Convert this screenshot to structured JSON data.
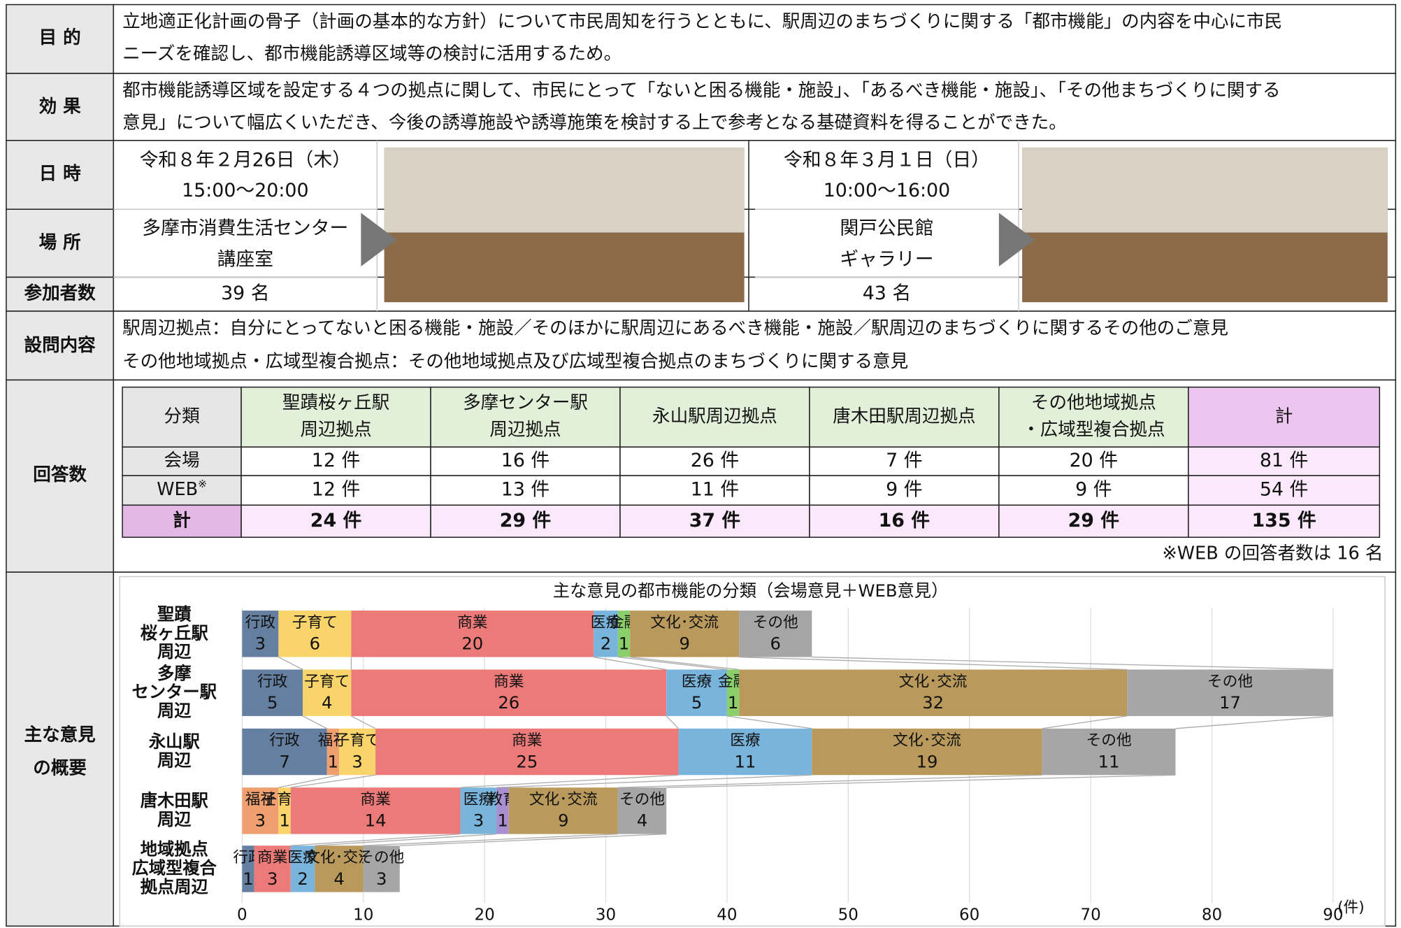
{
  "rows": [
    {
      "label": "目 的",
      "lines": [
        "立地適正化計画の骨子（計画の基本的な方針）について市民周知を行うとともに、駅周辺のまちづくりに関する「都市機能」の内容を中心に市民",
        "ニーズを確認し、都市機能誘導区域等の検討に活用するため。"
      ]
    },
    {
      "label": "効 果",
      "lines": [
        "都市機能誘導区域を設定する４つの拠点に関して、市民にとって「ないと困る機能・施設」、「あるべき機能・施設」、「その他まちづくりに関する",
        "意見」について幅広くいただき、今後の誘導施設や誘導施策を検討する上で参考となる基礎資料を得ることができた。"
      ]
    }
  ],
  "sessions": {
    "labels": {
      "datetime": "日 時",
      "place": "場 所",
      "participants": "参加者数"
    },
    "items": [
      {
        "date": "令和８年２月26日（木）",
        "time": "15:00～20:00",
        "place": [
          "多摩市消費生活センター",
          "講座室"
        ],
        "participants": "39 名"
      },
      {
        "date": "令和８年３月１日（日）",
        "time": "10:00～16:00",
        "place": [
          "関戸公民館",
          "ギャラリー"
        ],
        "participants": "43 名"
      }
    ]
  },
  "questions": {
    "label": "設問内容",
    "lines": [
      "駅周辺拠点：自分にとってないと困る機能・施設／そのほかに駅周辺にあるべき機能・施設／駅周辺のまちづくりに関するその他のご意見",
      "その他地域拠点・広域型複合拠点：その他地域拠点及び広域型複合拠点のまちづくりに関する意見"
    ]
  },
  "answers": {
    "label": "回答数",
    "header": [
      [
        "分類"
      ],
      [
        "聖蹟桜ヶ丘駅",
        "周辺拠点"
      ],
      [
        "多摩センター駅",
        "周辺拠点"
      ],
      [
        "永山駅周辺拠点"
      ],
      [
        "唐木田駅周辺拠点"
      ],
      [
        "その他地域拠点",
        "・広域型複合拠点"
      ],
      [
        "計"
      ]
    ],
    "rows": [
      {
        "label": "会場",
        "cells": [
          "12 件",
          "16 件",
          "26 件",
          "7 件",
          "20 件",
          "81 件"
        ]
      },
      {
        "label": "WEB",
        "note_mark": "※",
        "cells": [
          "12 件",
          "13 件",
          "11 件",
          "9 件",
          "9 件",
          "54 件"
        ]
      },
      {
        "label": "計",
        "cells": [
          "24 件",
          "29 件",
          "37 件",
          "16 件",
          "29 件",
          "135 件"
        ]
      }
    ],
    "note": "※WEB の回答者数は 16 名"
  },
  "opinions": {
    "label": [
      "主な意見",
      "の概要"
    ],
    "chart_data": {
      "type": "bar",
      "orientation": "horizontal",
      "stacked": true,
      "title": "主な意見の都市機能の分類（会場意見＋WEB意見）",
      "categories": [
        [
          "聖蹟",
          "桜ヶ丘駅",
          "周辺"
        ],
        [
          "多摩",
          "センター駅",
          "周辺"
        ],
        [
          "永山駅",
          "周辺"
        ],
        [
          "唐木田駅",
          "周辺"
        ],
        [
          "地域拠点",
          "広域型複合",
          "拠点周辺"
        ]
      ],
      "series": [
        {
          "name": "行政",
          "color": "#657fa0",
          "values": [
            3,
            5,
            7,
            null,
            1
          ]
        },
        {
          "name": "福祉",
          "color": "#f0a070",
          "values": [
            null,
            null,
            1,
            3,
            null
          ]
        },
        {
          "name": "子育て",
          "color": "#f9d46a",
          "values": [
            6,
            4,
            3,
            1,
            null
          ]
        },
        {
          "name": "商業",
          "color": "#ec7a78",
          "values": [
            20,
            26,
            25,
            14,
            3
          ]
        },
        {
          "name": "医療",
          "color": "#79b4dc",
          "values": [
            2,
            5,
            11,
            3,
            2
          ]
        },
        {
          "name": "教育",
          "color": "#a98fd0",
          "values": [
            null,
            null,
            null,
            1,
            null
          ]
        },
        {
          "name": "金融",
          "color": "#8bcf6a",
          "values": [
            1,
            1,
            null,
            null,
            null
          ]
        },
        {
          "name": "文化･交流",
          "color": "#b99a5c",
          "values": [
            9,
            32,
            19,
            9,
            4
          ]
        },
        {
          "name": "その他",
          "color": "#a6a6a6",
          "values": [
            6,
            17,
            11,
            4,
            3
          ]
        }
      ],
      "xlim": [
        0,
        90
      ],
      "xticks": [
        0,
        10,
        20,
        30,
        40,
        50,
        60,
        70,
        80,
        90
      ],
      "x_unit": "(件)",
      "grid": true
    }
  }
}
